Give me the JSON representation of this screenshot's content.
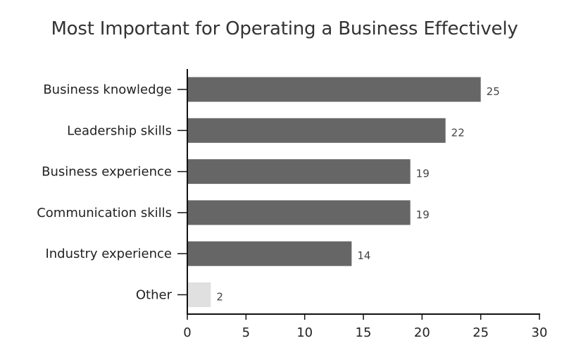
{
  "chart_data": {
    "type": "bar",
    "orientation": "horizontal",
    "title": "Most Important for Operating a Business Effectively",
    "xlabel": "",
    "ylabel": "",
    "categories": [
      "Business knowledge",
      "Leadership skills",
      "Business experience",
      "Communication skills",
      "Industry experience",
      "Other"
    ],
    "values": [
      25,
      22,
      19,
      19,
      14,
      2
    ],
    "data_labels": [
      "25",
      "22",
      "19",
      "19",
      "14",
      "2"
    ],
    "xlim": [
      0,
      30
    ],
    "x_ticks": [
      0,
      5,
      10,
      15,
      20,
      25,
      30
    ],
    "x_tick_labels": [
      "0",
      "5",
      "10",
      "15",
      "20",
      "25",
      "30"
    ],
    "grid": false,
    "legend": "none",
    "colors": {
      "bar": "#666666",
      "highlight_other": "#e0e0e0",
      "axis": "#111111",
      "text": "#222222",
      "title": "#333333"
    }
  }
}
